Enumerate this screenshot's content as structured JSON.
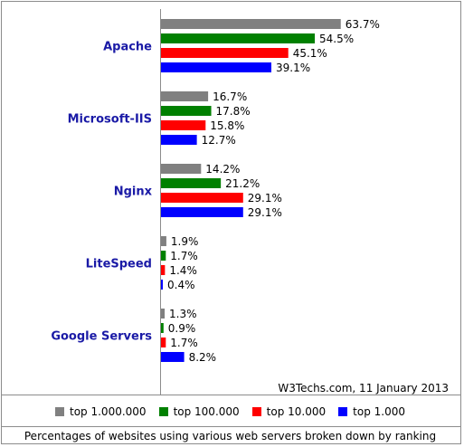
{
  "chart_data": {
    "type": "bar",
    "orientation": "horizontal",
    "categories": [
      "Apache",
      "Microsoft-IIS",
      "Nginx",
      "LiteSpeed",
      "Google Servers"
    ],
    "series": [
      {
        "name": "top 1.000.000",
        "color": "#808080",
        "values": [
          63.7,
          16.7,
          14.2,
          1.9,
          1.3
        ],
        "labels": [
          "63.7%",
          "16.7%",
          "14.2%",
          "1.9%",
          "1.3%"
        ]
      },
      {
        "name": "top 100.000",
        "color": "#008000",
        "values": [
          54.5,
          17.8,
          21.2,
          1.7,
          0.9
        ],
        "labels": [
          "54.5%",
          "17.8%",
          "21.2%",
          "1.7%",
          "0.9%"
        ]
      },
      {
        "name": "top 10.000",
        "color": "#ff0000",
        "values": [
          45.1,
          15.8,
          29.1,
          1.4,
          1.7
        ],
        "labels": [
          "45.1%",
          "15.8%",
          "29.1%",
          "1.4%",
          "1.7%"
        ]
      },
      {
        "name": "top 1.000",
        "color": "#0000ff",
        "values": [
          39.1,
          12.7,
          29.1,
          0.4,
          8.2
        ],
        "labels": [
          "39.1%",
          "12.7%",
          "29.1%",
          "0.4%",
          "8.2%"
        ]
      }
    ],
    "xlim": [
      0,
      100
    ],
    "grid": false,
    "legend_position": "bottom",
    "credit": "W3Techs.com, 11 January 2013",
    "caption": "Percentages of websites using various web servers broken down by ranking"
  }
}
